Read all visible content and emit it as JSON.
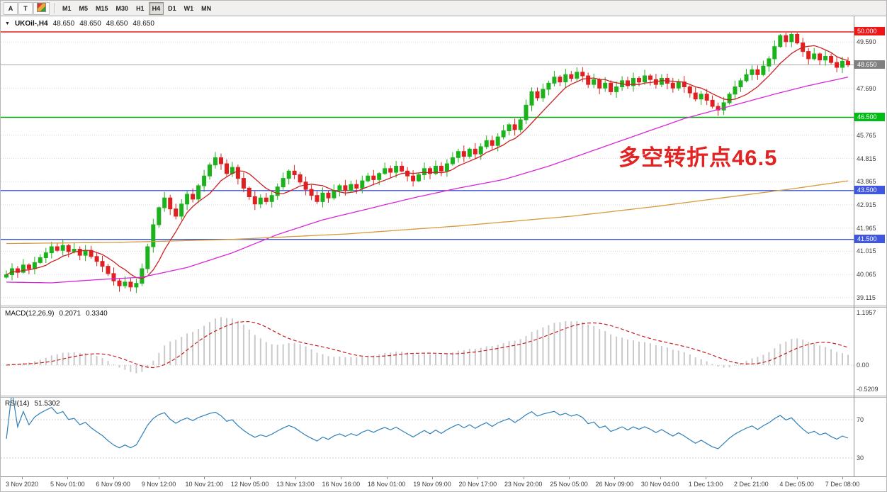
{
  "toolbar": {
    "tools": [
      {
        "name": "arrow-tool",
        "label": "A"
      },
      {
        "name": "text-tool",
        "label": "T"
      },
      {
        "name": "crayons-tool",
        "label": ""
      }
    ],
    "timeframes": [
      "M1",
      "M5",
      "M15",
      "M30",
      "H1",
      "H4",
      "D1",
      "W1",
      "MN"
    ],
    "active_timeframe": "H4"
  },
  "chart_header": {
    "dropdown_icon": "▼",
    "symbol": "UKOil-,H4",
    "open": "48.650",
    "high": "48.650",
    "low": "48.650",
    "close": "48.650"
  },
  "annotation": {
    "text": "多空转折点46.5",
    "color": "#e32222"
  },
  "chart_data": {
    "type": "candlestick",
    "symbol": "UKOil",
    "timeframe": "H4",
    "x_labels": [
      "3 Nov 2020",
      "5 Nov 01:00",
      "6 Nov 09:00",
      "9 Nov 12:00",
      "10 Nov 21:00",
      "12 Nov 05:00",
      "13 Nov 13:00",
      "16 Nov 16:00",
      "18 Nov 01:00",
      "19 Nov 09:00",
      "20 Nov 17:00",
      "23 Nov 20:00",
      "25 Nov 05:00",
      "26 Nov 09:00",
      "30 Nov 04:00",
      "1 Dec 13:00",
      "2 Dec 21:00",
      "4 Dec 05:00",
      "7 Dec 08:00"
    ],
    "first_open": 39.95,
    "closes": [
      40.05,
      40.3,
      40.15,
      40.45,
      40.3,
      40.55,
      40.75,
      40.95,
      41.2,
      41.05,
      41.25,
      41.0,
      41.1,
      40.85,
      41.05,
      40.8,
      40.6,
      40.4,
      40.1,
      39.8,
      39.6,
      39.75,
      39.55,
      39.7,
      40.3,
      41.2,
      42.1,
      42.8,
      43.2,
      42.75,
      42.45,
      42.95,
      43.35,
      43.15,
      43.7,
      44.1,
      44.55,
      44.85,
      44.6,
      44.2,
      44.45,
      44.0,
      43.6,
      43.25,
      42.95,
      43.2,
      43.05,
      43.3,
      43.65,
      44.0,
      44.3,
      44.15,
      43.85,
      43.55,
      43.3,
      43.05,
      43.4,
      43.2,
      43.5,
      43.7,
      43.5,
      43.75,
      43.6,
      43.9,
      44.1,
      43.95,
      44.2,
      44.4,
      44.25,
      44.5,
      44.3,
      44.1,
      43.9,
      44.15,
      44.4,
      44.2,
      44.5,
      44.3,
      44.6,
      44.85,
      45.1,
      44.9,
      45.2,
      45.0,
      45.3,
      45.55,
      45.35,
      45.7,
      45.95,
      46.2,
      46.0,
      46.4,
      47.0,
      47.55,
      47.3,
      47.65,
      47.9,
      48.15,
      47.95,
      48.25,
      48.1,
      48.35,
      48.2,
      47.85,
      48.05,
      47.7,
      47.9,
      47.55,
      47.75,
      48.0,
      47.8,
      48.1,
      47.95,
      48.2,
      48.05,
      47.85,
      48.1,
      47.9,
      47.7,
      47.95,
      47.75,
      47.5,
      47.25,
      47.45,
      47.2,
      46.95,
      46.8,
      47.1,
      47.45,
      47.75,
      48.0,
      48.25,
      48.45,
      48.25,
      48.6,
      48.9,
      49.4,
      49.85,
      49.6,
      49.9,
      49.55,
      49.2,
      48.9,
      49.1,
      48.85,
      49.0,
      48.75,
      48.55,
      48.8,
      48.65
    ],
    "main_axis": {
      "ylim": [
        38.79,
        50.64
      ],
      "tick_labels": [
        "49.590",
        "47.690",
        "45.765",
        "44.815",
        "43.865",
        "42.915",
        "41.965",
        "41.015",
        "40.065",
        "39.115"
      ],
      "tick_prices": [
        49.59,
        47.69,
        45.765,
        44.815,
        43.865,
        42.915,
        41.965,
        41.015,
        40.065,
        39.115
      ]
    },
    "hlines": [
      {
        "price": 50.0,
        "label": "50.000",
        "color": "#e51a1a",
        "label_bg": "#ef1515"
      },
      {
        "price": 46.5,
        "label": "46.500",
        "color": "#00a80a",
        "label_bg": "#00bd13"
      },
      {
        "price": 43.5,
        "label": "43.500",
        "color": "#3c55d4",
        "label_bg": "#3f57e0"
      },
      {
        "price": 41.5,
        "label": "41.500",
        "color": "#3c55d4",
        "label_bg": "#3f57e0"
      }
    ],
    "bid": {
      "label": "48.650",
      "price": 48.65,
      "color": "#808080"
    },
    "candle_colors": {
      "bull": "#1cb21c",
      "bear": "#e02020"
    },
    "overlays": [
      {
        "name": "ma-fast-red",
        "color": "#c92222",
        "type": "sma",
        "window": 8
      },
      {
        "name": "ma-mid-magenta",
        "color": "#d926d9",
        "type": "anchors",
        "points": [
          [
            0,
            39.75
          ],
          [
            8,
            39.72
          ],
          [
            16,
            39.85
          ],
          [
            24,
            39.95
          ],
          [
            32,
            40.35
          ],
          [
            40,
            40.95
          ],
          [
            48,
            41.7
          ],
          [
            56,
            42.3
          ],
          [
            64,
            42.75
          ],
          [
            72,
            43.2
          ],
          [
            80,
            43.6
          ],
          [
            88,
            43.95
          ],
          [
            96,
            44.5
          ],
          [
            104,
            45.15
          ],
          [
            112,
            45.8
          ],
          [
            120,
            46.45
          ],
          [
            128,
            46.95
          ],
          [
            136,
            47.45
          ],
          [
            142,
            47.8
          ],
          [
            149,
            48.15
          ]
        ]
      },
      {
        "name": "ma-slow-orange",
        "color": "#d79a3c",
        "type": "anchors",
        "points": [
          [
            0,
            41.33
          ],
          [
            20,
            41.38
          ],
          [
            40,
            41.5
          ],
          [
            60,
            41.72
          ],
          [
            80,
            42.05
          ],
          [
            100,
            42.45
          ],
          [
            115,
            42.85
          ],
          [
            130,
            43.3
          ],
          [
            140,
            43.6
          ],
          [
            149,
            43.9
          ]
        ]
      }
    ],
    "macd": {
      "label": "MACD(12,26,9)",
      "main_value": "0.2071",
      "signal_value": "0.3340",
      "fast": 12,
      "slow": 26,
      "signal": 9,
      "axis_labels": [
        "1.1957",
        "0.00",
        "-0.5209"
      ],
      "axis_values": [
        1.1957,
        0,
        -0.5209
      ],
      "ylim": [
        -0.6675,
        1.2578
      ],
      "hist_color": "#c9c9c9",
      "signal_color": "#c8201f"
    },
    "rsi": {
      "label": "RSI(14)",
      "value": "51.5302",
      "period": 14,
      "levels": [
        70,
        30
      ],
      "ylim": [
        10.7,
        93.0
      ],
      "color": "#2e7fb8"
    }
  }
}
